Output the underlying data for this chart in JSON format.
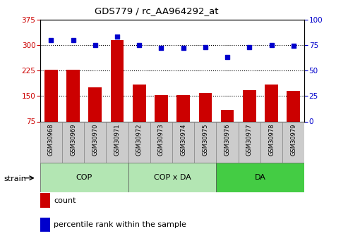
{
  "title": "GDS779 / rc_AA964292_at",
  "categories": [
    "GSM30968",
    "GSM30969",
    "GSM30970",
    "GSM30971",
    "GSM30972",
    "GSM30973",
    "GSM30974",
    "GSM30975",
    "GSM30976",
    "GSM30977",
    "GSM30978",
    "GSM30979"
  ],
  "bar_values": [
    228,
    227,
    175,
    315,
    183,
    152,
    152,
    158,
    110,
    168,
    183,
    165
  ],
  "dot_values": [
    80,
    80,
    75,
    83,
    75,
    72,
    72,
    73,
    63,
    73,
    75,
    74
  ],
  "bar_color": "#cc0000",
  "dot_color": "#0000cc",
  "ylim_left": [
    75,
    375
  ],
  "ylim_right": [
    0,
    100
  ],
  "yticks_left": [
    75,
    150,
    225,
    300,
    375
  ],
  "yticks_right": [
    0,
    25,
    50,
    75,
    100
  ],
  "group_configs": [
    {
      "start": 0,
      "end": 4,
      "label": "COP",
      "color": "#b3e6b3"
    },
    {
      "start": 4,
      "end": 8,
      "label": "COP x DA",
      "color": "#b3e6b3"
    },
    {
      "start": 8,
      "end": 12,
      "label": "DA",
      "color": "#44cc44"
    }
  ],
  "strain_label": "strain",
  "legend_count": "count",
  "legend_percentile": "percentile rank within the sample",
  "hline_color": "black",
  "bar_bottom": 75
}
